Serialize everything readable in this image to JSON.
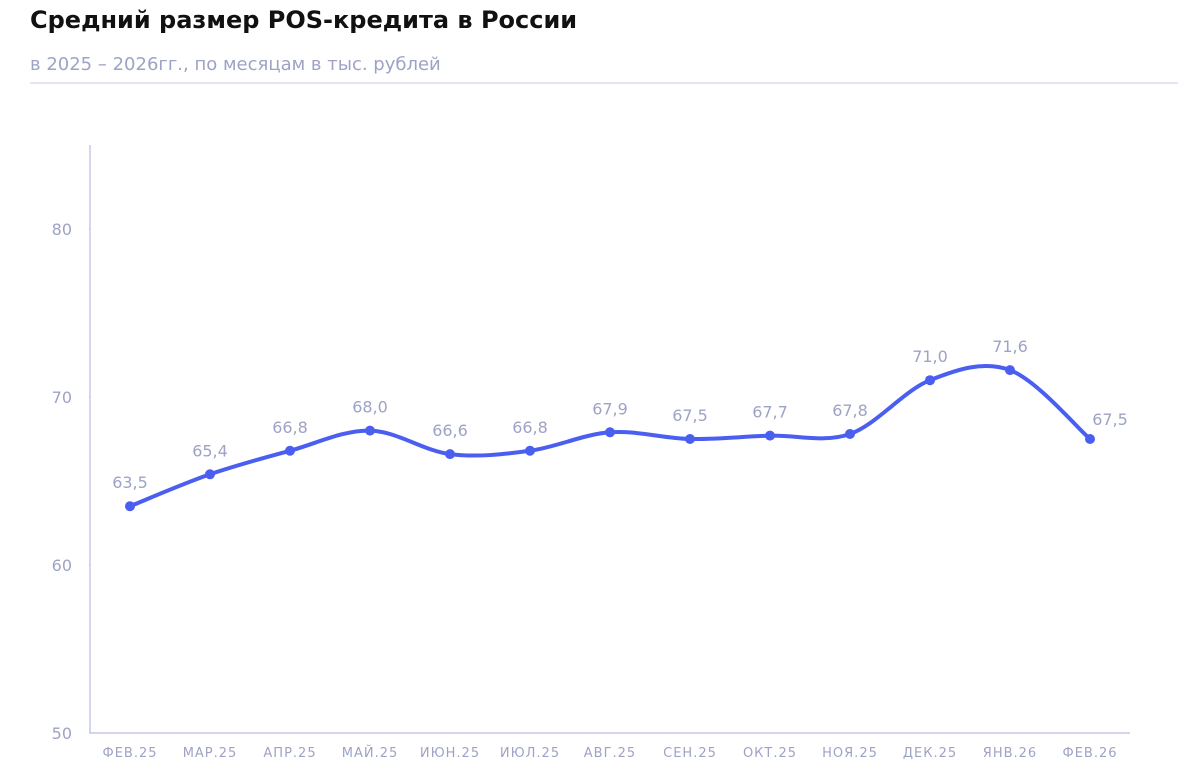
{
  "chart_data": {
    "type": "line",
    "title": "Средний размер POS-кредита в России",
    "subtitle": "в 2025 – 2026гг., по месяцам в тыс. рублей",
    "categories": [
      "ФЕВ.25",
      "МАР.25",
      "АПР.25",
      "МАЙ.25",
      "ИЮН.25",
      "ИЮЛ.25",
      "АВГ.25",
      "СЕН.25",
      "ОКТ.25",
      "НОЯ.25",
      "ДЕК.25",
      "ЯНВ.26",
      "ФЕВ.26"
    ],
    "values": [
      63.5,
      65.4,
      66.8,
      68.0,
      66.6,
      66.8,
      67.9,
      67.5,
      67.7,
      67.8,
      71.0,
      71.6,
      67.5
    ],
    "value_labels": [
      "63,5",
      "65,4",
      "66,8",
      "68,0",
      "66,6",
      "66,8",
      "67,9",
      "67,5",
      "67,7",
      "67,8",
      "71,0",
      "71,6",
      "67,5"
    ],
    "color": "#4a5ef0",
    "ylim": [
      50,
      85
    ],
    "yticks": [
      50,
      60,
      70,
      80
    ]
  }
}
